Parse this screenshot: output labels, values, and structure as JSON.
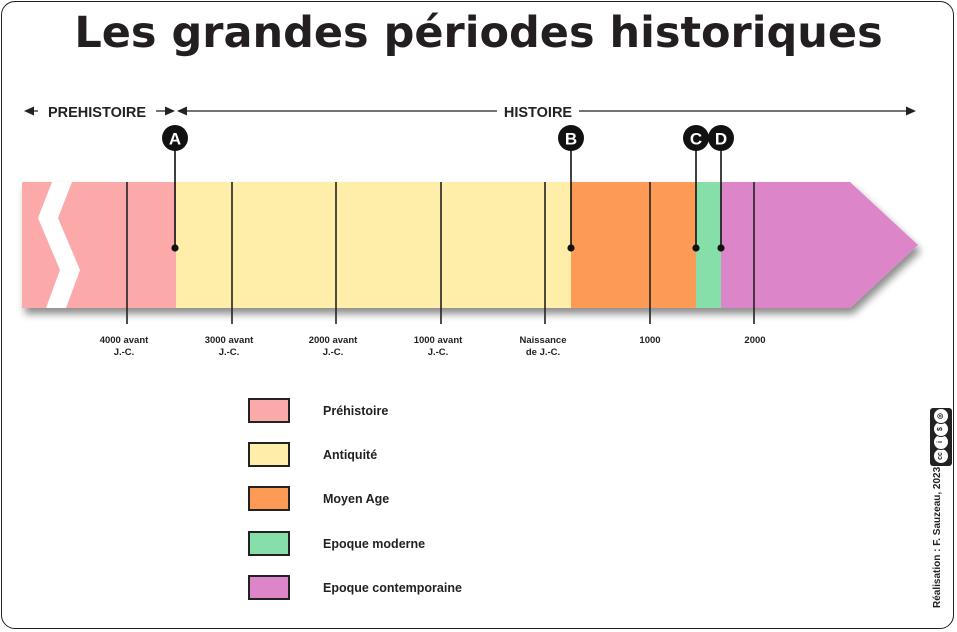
{
  "title": "Les grandes périodes historiques",
  "eras": {
    "prehistoire": "PREHISTOIRE",
    "histoire": "HISTOIRE"
  },
  "markers": {
    "a": "A",
    "b": "B",
    "c": "C",
    "d": "D"
  },
  "ticks": [
    {
      "line1": "4000 avant",
      "line2": "J.-C."
    },
    {
      "line1": "3000 avant",
      "line2": "J.-C."
    },
    {
      "line1": "2000 avant",
      "line2": "J.-C."
    },
    {
      "line1": "1000 avant",
      "line2": "J.-C."
    },
    {
      "line1": "Naissance",
      "line2": "de J.-C."
    },
    {
      "line1": "1000",
      "line2": ""
    },
    {
      "line1": "2000",
      "line2": ""
    }
  ],
  "periods": [
    {
      "name": "Préhistoire",
      "color": "#fba9a9"
    },
    {
      "name": "Antiquité",
      "color": "#feeeaa"
    },
    {
      "name": "Moyen Age",
      "color": "#fd9a56"
    },
    {
      "name": "Epoque moderne",
      "color": "#86dea8"
    },
    {
      "name": "Epoque contemporaine",
      "color": "#dc86c9"
    }
  ],
  "credit": "Réalisation : F. Sauzeau, 2023",
  "license_icons": [
    "cc-icon",
    "by-icon",
    "nc-icon",
    "sa-icon"
  ]
}
